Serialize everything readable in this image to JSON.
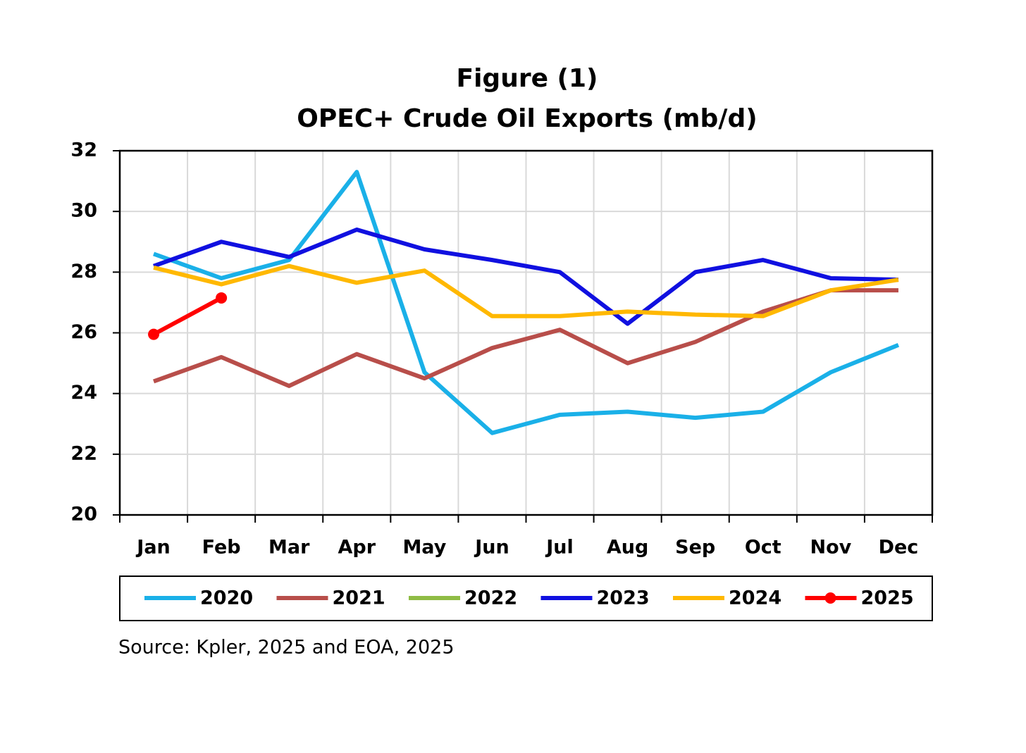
{
  "chart_data": {
    "type": "line",
    "title": "Figure (1)",
    "subtitle": "OPEC+ Crude Oil Exports (mb/d)",
    "source": "Source: Kpler, 2025 and  EOA, 2025",
    "categories": [
      "Jan",
      "Feb",
      "Mar",
      "Apr",
      "May",
      "Jun",
      "Jul",
      "Aug",
      "Sep",
      "Oct",
      "Nov",
      "Dec"
    ],
    "series": [
      {
        "name": "2020",
        "color": "#1ab0e8",
        "values": [
          28.6,
          27.8,
          28.4,
          31.3,
          24.7,
          22.7,
          23.3,
          23.4,
          23.2,
          23.4,
          24.7,
          25.6
        ]
      },
      {
        "name": "2021",
        "color": "#b84e4a",
        "values": [
          24.4,
          25.2,
          24.25,
          25.3,
          24.5,
          25.5,
          26.1,
          25.0,
          25.7,
          26.7,
          27.4,
          27.4
        ]
      },
      {
        "name": "2022",
        "color": "#8fbc45",
        "values": [
          null,
          null,
          null,
          null,
          null,
          null,
          null,
          null,
          null,
          null,
          null,
          null
        ]
      },
      {
        "name": "2023",
        "color": "#1010e0",
        "values": [
          28.2,
          29.0,
          28.5,
          29.4,
          28.75,
          28.4,
          28.0,
          26.3,
          28.0,
          28.4,
          27.8,
          27.75
        ]
      },
      {
        "name": "2024",
        "color": "#ffb800",
        "values": [
          28.15,
          27.6,
          28.2,
          27.65,
          28.05,
          26.55,
          26.55,
          26.7,
          26.6,
          26.55,
          27.4,
          27.75
        ]
      },
      {
        "name": "2025",
        "color": "#ff0000",
        "markers": true,
        "values": [
          25.95,
          27.15,
          null,
          null,
          null,
          null,
          null,
          null,
          null,
          null,
          null,
          null
        ]
      }
    ],
    "ylim": [
      20,
      32
    ],
    "yticks": [
      20,
      22,
      24,
      26,
      28,
      30,
      32
    ],
    "grid": true
  }
}
